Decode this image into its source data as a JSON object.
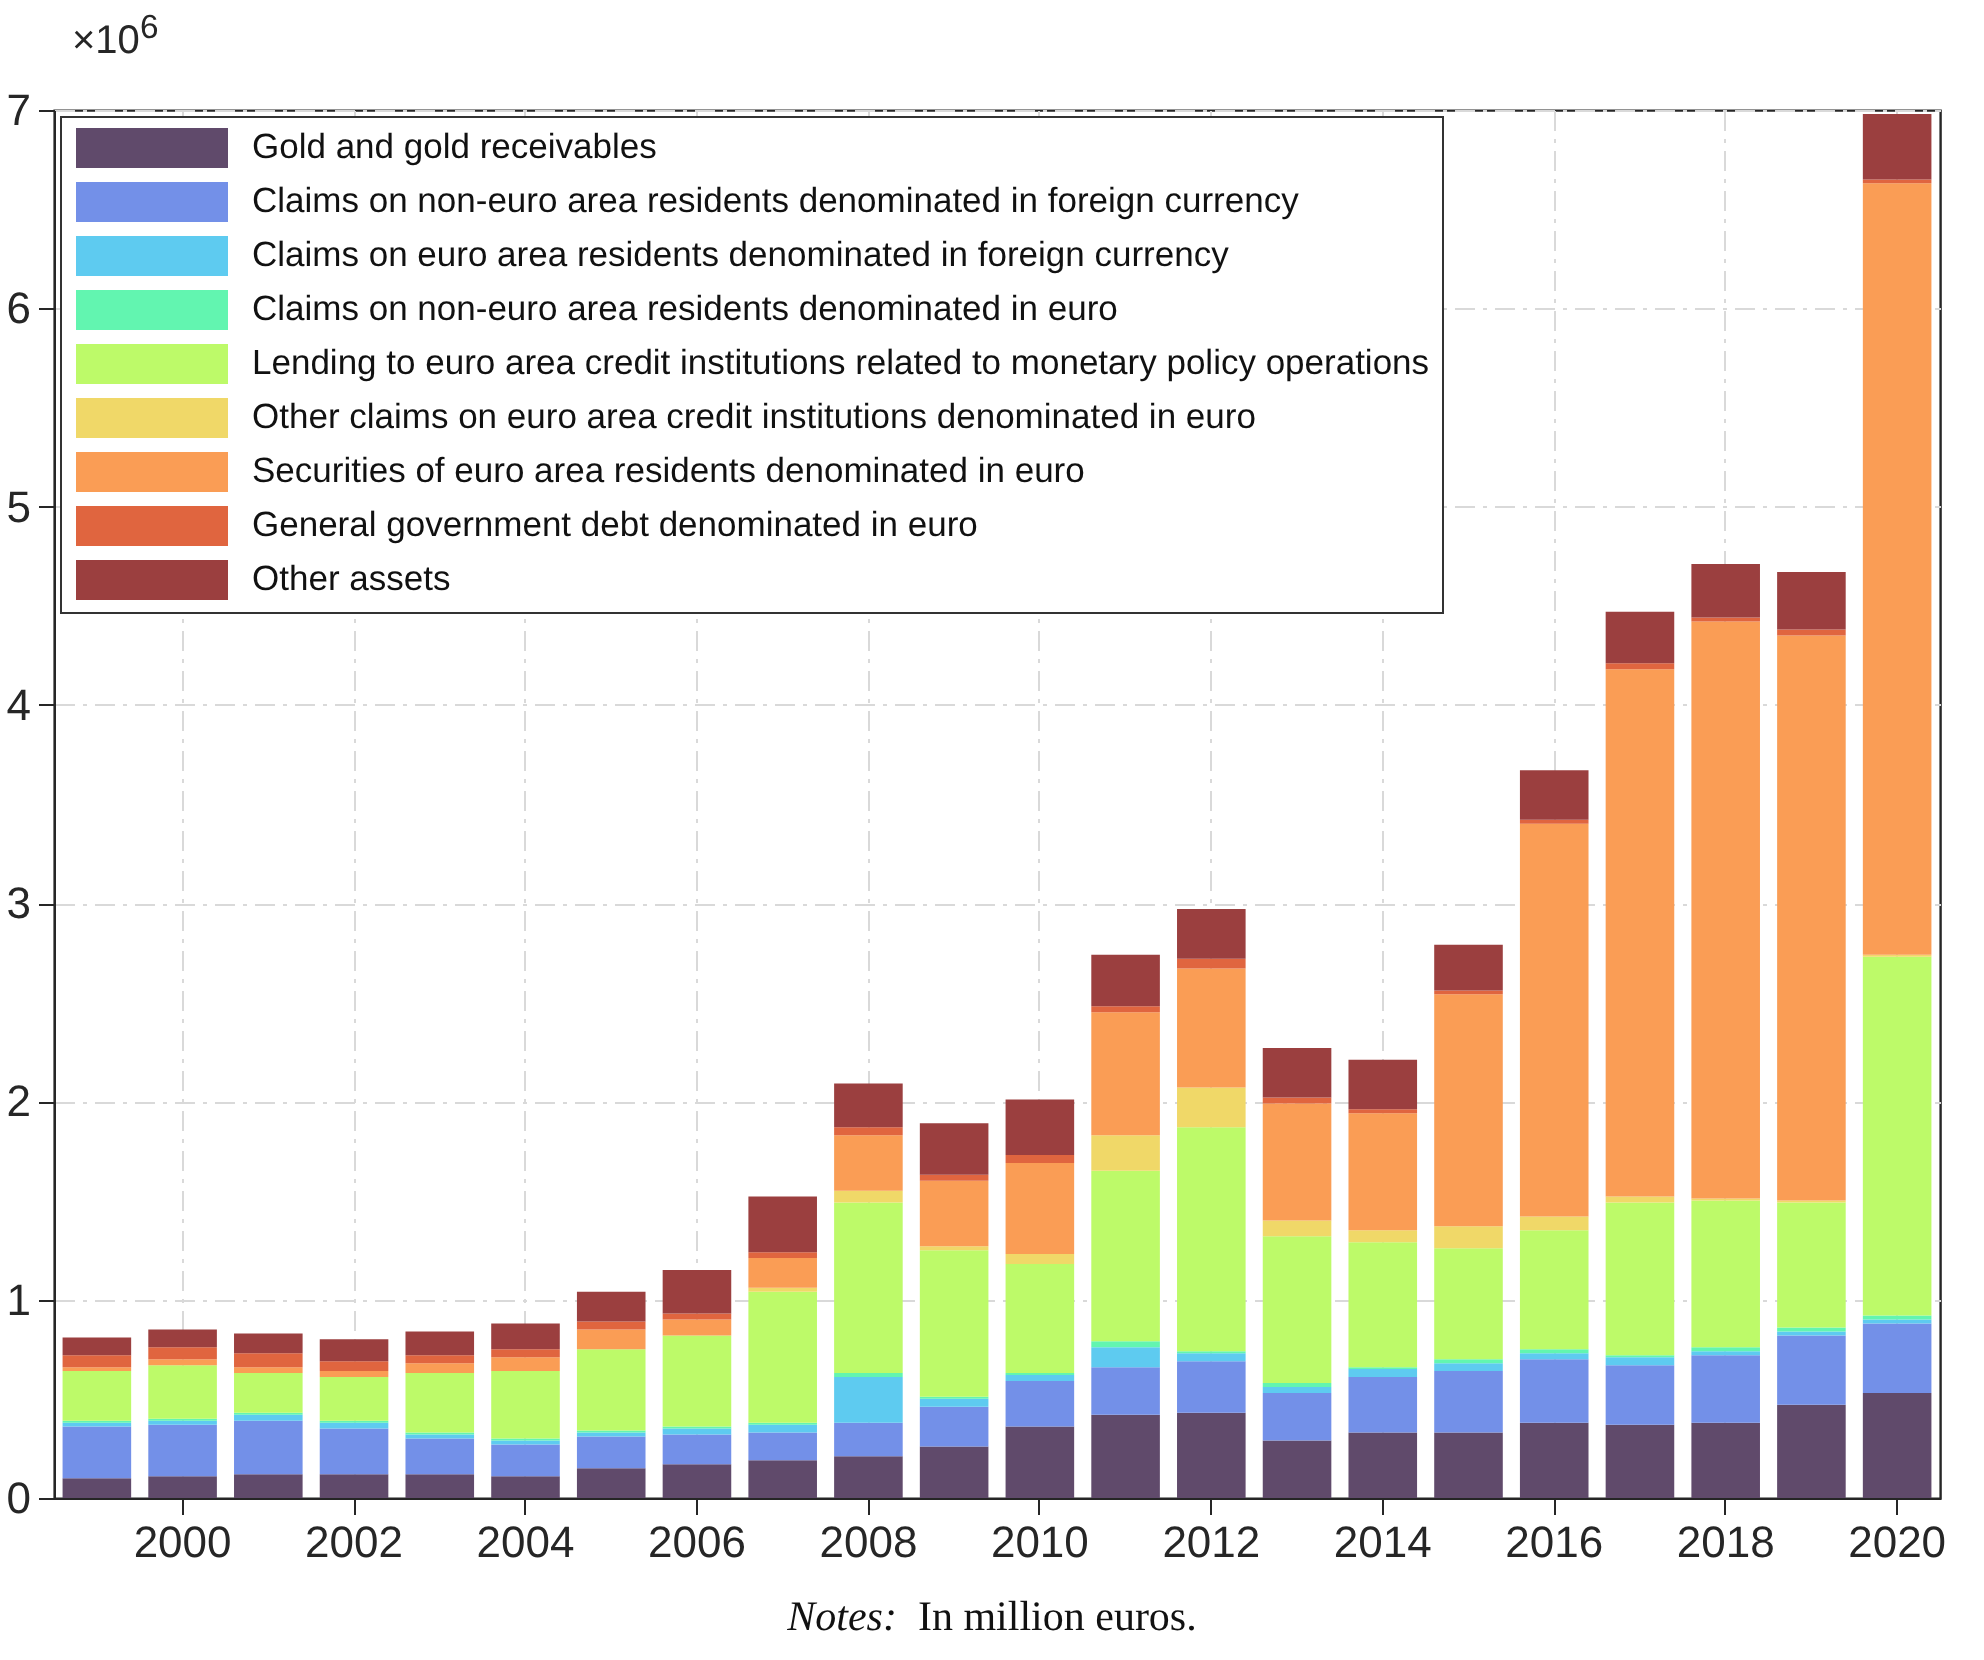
{
  "chart_data": {
    "type": "bar",
    "stacked": true,
    "categories": [
      null,
      "2000",
      null,
      "2002",
      null,
      "2004",
      null,
      "2006",
      null,
      "2008",
      null,
      "2010",
      null,
      "2012",
      null,
      "2014",
      null,
      "2016",
      null,
      "2018",
      null,
      "2020"
    ],
    "ylim": [
      0,
      7
    ],
    "yticks": [
      0,
      1,
      2,
      3,
      4,
      5,
      6,
      7
    ],
    "grid": true,
    "legend": "top left",
    "annotations": [
      "×10$^{6}$",
      "Notes:  In million euros."
    ],
    "series": [
      {
        "name": "Gold and gold receivables",
        "color": "#604a6b",
        "values": [
          0.1,
          0.11,
          0.12,
          0.12,
          0.12,
          0.11,
          0.15,
          0.17,
          0.19,
          0.21,
          0.26,
          0.36,
          0.42,
          0.43,
          0.29,
          0.33,
          0.33,
          0.38,
          0.37,
          0.38,
          0.47,
          0.53
        ]
      },
      {
        "name": "Claims on non-euro area residents denominated in foreign currency",
        "color": "#7390e8",
        "values": [
          0.26,
          0.26,
          0.27,
          0.23,
          0.18,
          0.16,
          0.16,
          0.15,
          0.14,
          0.17,
          0.2,
          0.23,
          0.24,
          0.26,
          0.24,
          0.28,
          0.31,
          0.32,
          0.3,
          0.34,
          0.35,
          0.35
        ]
      },
      {
        "name": "Claims on euro area residents denominated in foreign currency",
        "color": "#5ecbf0",
        "values": [
          0.02,
          0.02,
          0.03,
          0.03,
          0.02,
          0.02,
          0.02,
          0.03,
          0.04,
          0.23,
          0.04,
          0.03,
          0.1,
          0.04,
          0.03,
          0.04,
          0.04,
          0.03,
          0.04,
          0.02,
          0.02,
          0.02
        ]
      },
      {
        "name": "Claims on non-euro area residents denominated in euro",
        "color": "#62f5b0",
        "values": [
          0.01,
          0.01,
          0.01,
          0.01,
          0.01,
          0.01,
          0.01,
          0.01,
          0.01,
          0.02,
          0.01,
          0.01,
          0.03,
          0.01,
          0.02,
          0.01,
          0.02,
          0.02,
          0.01,
          0.02,
          0.02,
          0.02
        ]
      },
      {
        "name": "Lending to euro area credit institutions related to monetary policy operations",
        "color": "#bdfa69",
        "values": [
          0.25,
          0.27,
          0.2,
          0.22,
          0.3,
          0.34,
          0.41,
          0.46,
          0.66,
          0.86,
          0.74,
          0.55,
          0.86,
          1.13,
          0.74,
          0.63,
          0.56,
          0.6,
          0.77,
          0.74,
          0.63,
          1.81
        ]
      },
      {
        "name": "Other claims on euro area credit institutions denominated in euro",
        "color": "#f0d868",
        "values": [
          0,
          0,
          0,
          0,
          0,
          0,
          0,
          0,
          0.02,
          0.06,
          0.02,
          0.05,
          0.18,
          0.2,
          0.08,
          0.06,
          0.11,
          0.07,
          0.03,
          0.01,
          0.01,
          0.01
        ]
      },
      {
        "name": "Securities of euro area residents denominated in euro",
        "color": "#fa9d55",
        "values": [
          0.02,
          0.03,
          0.03,
          0.03,
          0.05,
          0.07,
          0.1,
          0.08,
          0.15,
          0.28,
          0.33,
          0.46,
          0.62,
          0.6,
          0.59,
          0.59,
          1.17,
          1.98,
          2.66,
          2.91,
          2.85,
          3.89
        ]
      },
      {
        "name": "General government debt denominated in euro",
        "color": "#e0653f",
        "values": [
          0.06,
          0.06,
          0.07,
          0.05,
          0.04,
          0.04,
          0.04,
          0.03,
          0.03,
          0.04,
          0.03,
          0.04,
          0.03,
          0.05,
          0.03,
          0.02,
          0.02,
          0.02,
          0.03,
          0.02,
          0.03,
          0.02
        ]
      },
      {
        "name": "Other assets",
        "color": "#9b3f3f",
        "values": [
          0.09,
          0.09,
          0.1,
          0.11,
          0.12,
          0.13,
          0.15,
          0.22,
          0.28,
          0.22,
          0.26,
          0.28,
          0.26,
          0.25,
          0.25,
          0.25,
          0.23,
          0.25,
          0.26,
          0.27,
          0.29,
          0.33
        ]
      }
    ]
  }
}
